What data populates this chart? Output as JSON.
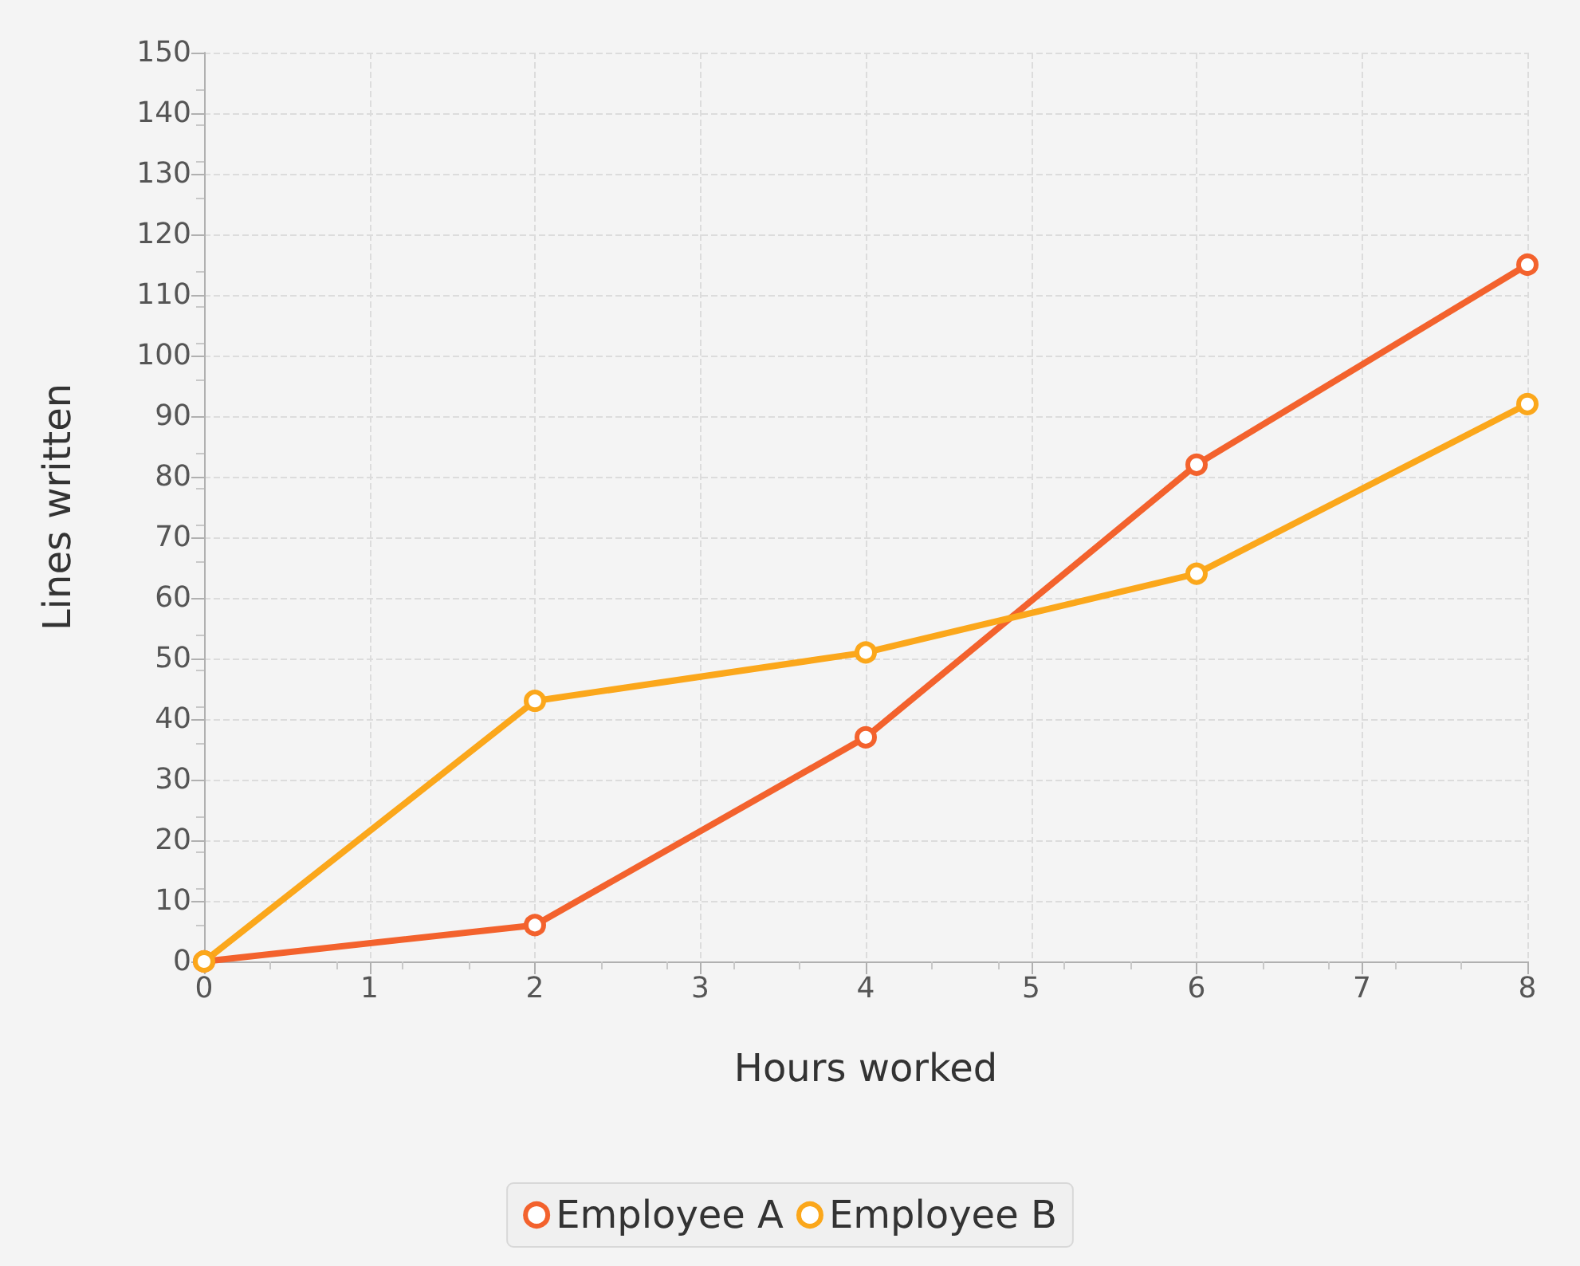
{
  "chart_data": {
    "type": "line",
    "xlabel": "Hours worked",
    "ylabel": "Lines written",
    "x": [
      0,
      2,
      4,
      6,
      8
    ],
    "series": [
      {
        "name": "Employee A",
        "color": "#f3622d",
        "values": [
          0,
          6,
          37,
          82,
          115
        ]
      },
      {
        "name": "Employee B",
        "color": "#fba71b",
        "values": [
          0,
          43,
          51,
          64,
          92
        ]
      }
    ],
    "xlim": [
      0,
      8
    ],
    "xticks": [
      0,
      1,
      2,
      3,
      4,
      5,
      6,
      7,
      8
    ],
    "ylim": [
      0,
      150
    ],
    "yticks": [
      0,
      10,
      20,
      30,
      40,
      50,
      60,
      70,
      80,
      90,
      100,
      110,
      120,
      130,
      140,
      150
    ],
    "grid": true,
    "legend": "bottom",
    "marker": "circle",
    "line_style": "solid"
  }
}
